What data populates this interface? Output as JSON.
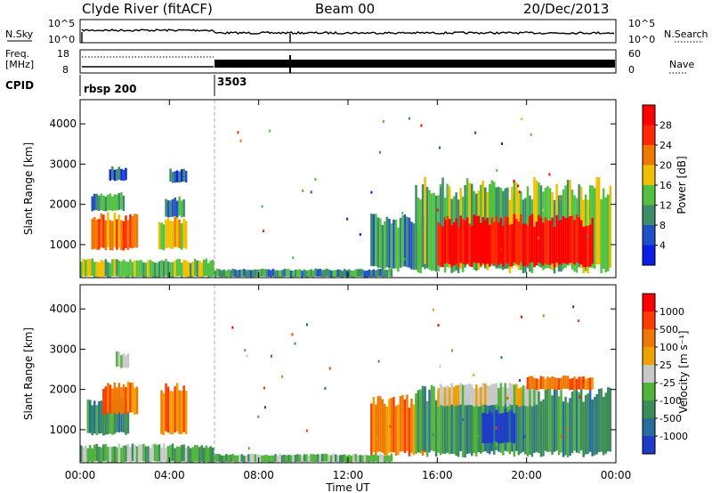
{
  "header": {
    "station": "Clyde River (fitACF)",
    "beam": "Beam 00",
    "date": "20/Dec/2013"
  },
  "top_panels": {
    "nsky": {
      "left_label": "N.Sky",
      "right_label": "N.Search",
      "left_ticks": [
        "10^5",
        "10^0"
      ],
      "right_ticks": [
        "10^5",
        "10^0"
      ]
    },
    "freq": {
      "left_label_1": "Freq.",
      "left_label_2": "[MHz]",
      "right_label": "Nave",
      "left_ticks": [
        "18",
        "8"
      ],
      "right_ticks": [
        "60",
        "0"
      ]
    },
    "cpid": {
      "label": "CPID",
      "entries": [
        {
          "name": "rbsp 200",
          "start_hour": 0
        },
        {
          "name": "3503",
          "start_hour": 6
        }
      ]
    }
  },
  "chart_data": [
    {
      "type": "heatmap",
      "panel": "power",
      "ylabel": "Slant Range [km]",
      "yticks": [
        1000,
        2000,
        3000,
        4000
      ],
      "ylim": [
        180,
        4600
      ],
      "xlim": [
        0,
        24
      ],
      "colorbar": {
        "label": "Power [dB]",
        "ticks": [
          "4",
          "8",
          "12",
          "16",
          "20",
          "24",
          "28"
        ],
        "colors": [
          "#0a1ee6",
          "#2050c8",
          "#3c8c6c",
          "#52c040",
          "#f0c000",
          "#f07800",
          "#ff2800",
          "#ff0000"
        ]
      },
      "regions": [
        {
          "t0": 0.5,
          "t1": 2.6,
          "r0": 900,
          "r1": 1700,
          "level": 5
        },
        {
          "t0": 0.5,
          "t1": 2.0,
          "r0": 1850,
          "r1": 2250,
          "level": 2
        },
        {
          "t0": 1.3,
          "t1": 2.1,
          "r0": 2600,
          "r1": 2900,
          "level": 1
        },
        {
          "t0": 3.5,
          "t1": 4.8,
          "r0": 900,
          "r1": 1600,
          "level": 4
        },
        {
          "t0": 3.8,
          "t1": 4.7,
          "r0": 1700,
          "r1": 2150,
          "level": 2
        },
        {
          "t0": 4.0,
          "t1": 4.8,
          "r0": 2550,
          "r1": 2850,
          "level": 1
        },
        {
          "t0": 0.0,
          "t1": 6.0,
          "r0": 200,
          "r1": 600,
          "level": 3
        },
        {
          "t0": 6.0,
          "t1": 14.0,
          "r0": 200,
          "r1": 380,
          "level": 2
        },
        {
          "t0": 13.0,
          "t1": 15.5,
          "r0": 400,
          "r1": 1600,
          "level": 2
        },
        {
          "t0": 15.0,
          "t1": 23.8,
          "r0": 400,
          "r1": 2400,
          "level": 3
        },
        {
          "t0": 16.0,
          "t1": 23.0,
          "r0": 500,
          "r1": 1600,
          "level": 7
        }
      ]
    },
    {
      "type": "heatmap",
      "panel": "velocity",
      "ylabel": "Slant Range [km]",
      "yticks": [
        1000,
        2000,
        3000,
        4000
      ],
      "ylim": [
        180,
        4600
      ],
      "xlim": [
        0,
        24
      ],
      "xticks": [
        "00:00",
        "04:00",
        "08:00",
        "12:00",
        "16:00",
        "20:00",
        "00:00"
      ],
      "xlabel": "Time UT",
      "colorbar": {
        "label": "Velocity [m s⁻¹]",
        "ticks": [
          "1000",
          "500",
          "100",
          "25",
          "-25",
          "-100",
          "-500",
          "-1000"
        ],
        "colors": [
          "#1e3cc8",
          "#286e9c",
          "#3c8c5a",
          "#50b43c",
          "#c8c8c8",
          "#f0a000",
          "#f07800",
          "#ff3c00",
          "#ff0000"
        ]
      },
      "regions": [
        {
          "t0": 0.3,
          "t1": 2.2,
          "r0": 900,
          "r1": 1700,
          "level": 2
        },
        {
          "t0": 1.0,
          "t1": 2.6,
          "r0": 1400,
          "r1": 2100,
          "level": 6
        },
        {
          "t0": 1.6,
          "t1": 2.2,
          "r0": 2550,
          "r1": 2900,
          "level": 4
        },
        {
          "t0": 3.6,
          "t1": 4.8,
          "r0": 900,
          "r1": 2000,
          "level": 6
        },
        {
          "t0": 0.0,
          "t1": 6.0,
          "r0": 200,
          "r1": 600,
          "level": 3
        },
        {
          "t0": 6.0,
          "t1": 14.0,
          "r0": 200,
          "r1": 380,
          "level": 3
        },
        {
          "t0": 13.0,
          "t1": 15.5,
          "r0": 400,
          "r1": 1700,
          "level": 6
        },
        {
          "t0": 15.0,
          "t1": 23.8,
          "r0": 400,
          "r1": 1900,
          "level": 2
        },
        {
          "t0": 16.0,
          "t1": 20.5,
          "r0": 1600,
          "r1": 2100,
          "level": 4
        },
        {
          "t0": 20.0,
          "t1": 23.0,
          "r0": 2000,
          "r1": 2300,
          "level": 6
        },
        {
          "t0": 18.0,
          "t1": 19.5,
          "r0": 700,
          "r1": 1500,
          "level": 0
        }
      ]
    }
  ]
}
